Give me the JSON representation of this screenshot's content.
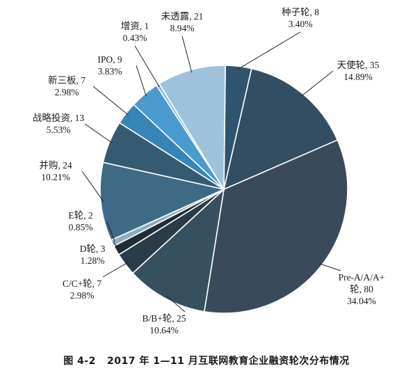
{
  "caption": "图 4-2   2017 年 1—11 月互联网教育企业融资轮次分布情况",
  "chart_data": {
    "type": "pie",
    "title": "",
    "slices": [
      {
        "name": "种子轮",
        "count": 8,
        "percent_label": "3.40%",
        "color": "#2f5470"
      },
      {
        "name": "天使轮",
        "count": 35,
        "percent_label": "14.89%",
        "color": "#334d62"
      },
      {
        "name": "Pre-A/A/A+轮",
        "name_lines": [
          "Pre-A/A/A+",
          "轮, 80"
        ],
        "count": 80,
        "percent_label": "34.04%",
        "color": "#3a4a5a"
      },
      {
        "name": "B/B+轮",
        "count": 25,
        "percent_label": "10.64%",
        "color": "#37505f"
      },
      {
        "name": "C/C+轮",
        "count": 7,
        "percent_label": "2.98%",
        "color": "#2a3c48"
      },
      {
        "name": "D轮",
        "count": 3,
        "percent_label": "1.28%",
        "color": "#1e2c36"
      },
      {
        "name": "E轮",
        "count": 2,
        "percent_label": "0.85%",
        "color": "#8faebf"
      },
      {
        "name": "并购",
        "count": 24,
        "percent_label": "10.21%",
        "color": "#3f6a86"
      },
      {
        "name": "战略投资",
        "count": 13,
        "percent_label": "5.53%",
        "color": "#365a72"
      },
      {
        "name": "新三板",
        "count": 7,
        "percent_label": "2.98%",
        "color": "#3784b8"
      },
      {
        "name": "IPO",
        "count": 9,
        "percent_label": "3.83%",
        "color": "#4a9ad0"
      },
      {
        "name": "增资",
        "count": 1,
        "percent_label": "0.43%",
        "color": "#7fc0e6"
      },
      {
        "name": "未透露",
        "count": 21,
        "percent_label": "8.94%",
        "color": "#9ec2dc"
      }
    ]
  }
}
